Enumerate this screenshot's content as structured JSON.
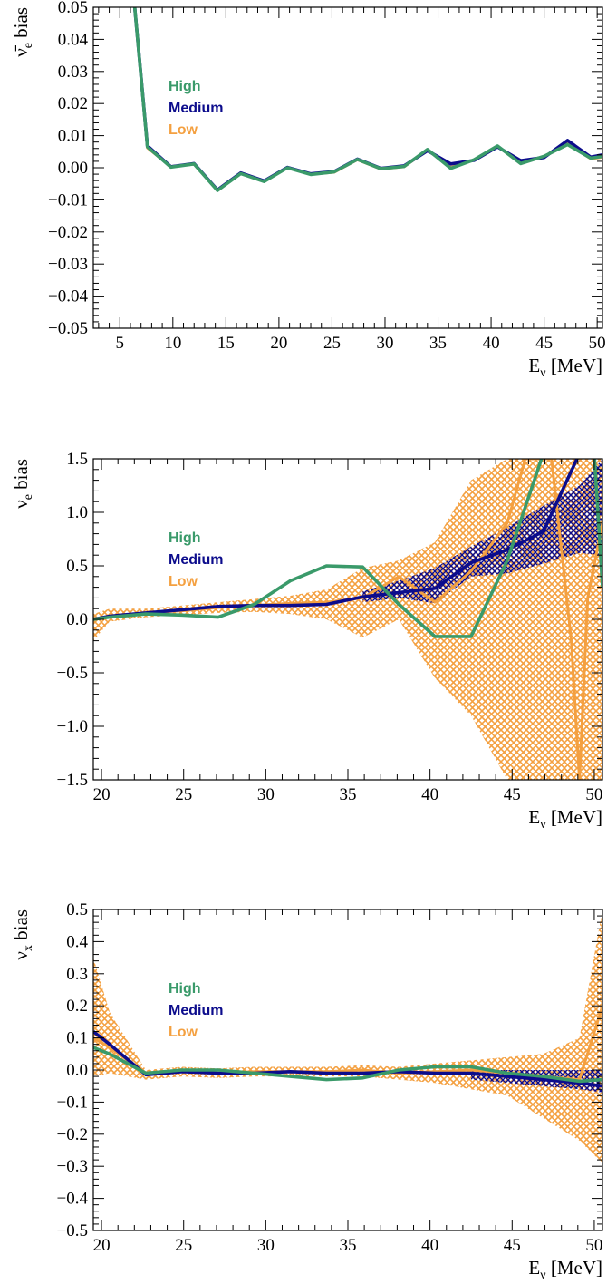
{
  "colors": {
    "High": "#3a9a6a",
    "Medium": "#0c0c8c",
    "Low": "#f4a040"
  },
  "chart_data": [
    {
      "type": "line",
      "xlabel": "E_ν [MeV]",
      "ylabel_main": "ν̄",
      "ylabel_sub": "e",
      "ylabel_rest": " bias",
      "xlim": [
        2.5,
        50.5
      ],
      "ylim": [
        -0.05,
        0.05
      ],
      "xticks": [
        5,
        10,
        15,
        20,
        25,
        30,
        35,
        40,
        45,
        50
      ],
      "xtick_labels": [
        "5",
        "10",
        "15",
        "20",
        "25",
        "30",
        "35",
        "40",
        "45",
        "50"
      ],
      "yticks": [
        -0.05,
        -0.04,
        -0.03,
        -0.02,
        -0.01,
        0,
        0.01,
        0.02,
        0.03,
        0.04,
        0.05
      ],
      "ytick_labels": [
        "−0.05",
        "−0.04",
        "−0.03",
        "−0.02",
        "−0.01",
        "0.00",
        "0.01",
        "0.02",
        "0.03",
        "0.04",
        "0.05"
      ],
      "legend": [
        "High",
        "Medium",
        "Low"
      ],
      "legend_position": "upper-left",
      "series": [
        {
          "name": "High",
          "x": [
            6.4,
            7.6,
            9.8,
            12.0,
            14.2,
            16.4,
            18.6,
            20.8,
            23.0,
            25.2,
            27.4,
            29.6,
            31.8,
            34.0,
            36.2,
            38.4,
            40.6,
            42.8,
            45.0,
            47.2,
            49.4,
            50.5
          ],
          "y": [
            0.05,
            0.0065,
            0.0002,
            0.0012,
            -0.0071,
            -0.0018,
            -0.0043,
            0.0,
            -0.0021,
            -0.0013,
            0.0026,
            -0.0003,
            0.0004,
            0.0057,
            -0.0002,
            0.0025,
            0.0068,
            0.0013,
            0.0036,
            0.0072,
            0.003,
            0.0035
          ]
        },
        {
          "name": "Medium",
          "x": [
            6.4,
            7.6,
            9.8,
            12.0,
            14.2,
            16.4,
            18.6,
            20.8,
            23.0,
            25.2,
            27.4,
            29.6,
            31.8,
            34.0,
            36.2,
            38.4,
            40.6,
            42.8,
            45.0,
            47.2,
            49.4,
            50.5
          ],
          "y": [
            0.05,
            0.0068,
            0.0003,
            0.0013,
            -0.0069,
            -0.0016,
            -0.0041,
            0.0001,
            -0.0019,
            -0.0012,
            0.0027,
            -0.0002,
            0.0006,
            0.0053,
            0.0012,
            0.0023,
            0.0065,
            0.0022,
            0.0032,
            0.0085,
            0.0033,
            0.004
          ]
        },
        {
          "name": "Low",
          "x": [
            6.4,
            7.6,
            9.8,
            12.0,
            14.2,
            16.4,
            18.6,
            20.8,
            23.0,
            25.2,
            27.4,
            29.6,
            31.8,
            34.0,
            36.2,
            38.4,
            40.6,
            42.8,
            45.0,
            47.2,
            49.4,
            50.5
          ],
          "y": [
            0.05,
            0.0062,
            0.0004,
            0.0011,
            -0.007,
            -0.0017,
            -0.0042,
            0.0,
            -0.002,
            -0.0014,
            0.0025,
            -0.0004,
            0.0003,
            0.0055,
            0.0001,
            0.0024,
            0.0067,
            0.0015,
            0.0034,
            0.0075,
            0.0028,
            0.0033
          ]
        }
      ]
    },
    {
      "type": "line",
      "xlabel": "E_ν [MeV]",
      "ylabel_main": "ν",
      "ylabel_sub": "e",
      "ylabel_rest": " bias",
      "xlim": [
        19.5,
        50.5
      ],
      "ylim": [
        -1.5,
        1.5
      ],
      "xticks": [
        20,
        25,
        30,
        35,
        40,
        45,
        50
      ],
      "xtick_labels": [
        "20",
        "25",
        "30",
        "35",
        "40",
        "45",
        "50"
      ],
      "yticks": [
        -1.5,
        -1.0,
        -0.5,
        0.0,
        0.5,
        1.0,
        1.5
      ],
      "ytick_labels": [
        "−1.5",
        "−1.0",
        "−0.5",
        "0.0",
        "0.5",
        "1.0",
        "1.5"
      ],
      "legend": [
        "High",
        "Medium",
        "Low"
      ],
      "legend_position": "upper-left",
      "series": [
        {
          "name": "High",
          "x": [
            19.5,
            20.5,
            22.7,
            24.9,
            27.1,
            29.3,
            31.5,
            33.7,
            35.9,
            38.1,
            40.3,
            42.5,
            44.7,
            46.9,
            49.1,
            50.0,
            50.5
          ],
          "y": [
            0.0,
            0.02,
            0.05,
            0.04,
            0.02,
            0.14,
            0.36,
            0.5,
            0.49,
            0.14,
            -0.16,
            -0.16,
            0.55,
            1.55,
            1.55,
            1.55,
            0.3
          ]
        },
        {
          "name": "Medium",
          "x": [
            19.5,
            20.5,
            22.7,
            24.9,
            27.1,
            29.3,
            31.5,
            33.7,
            35.9,
            38.1,
            40.3,
            42.5,
            44.7,
            46.9,
            49.1,
            50.5
          ],
          "y": [
            0.0,
            0.03,
            0.06,
            0.09,
            0.12,
            0.13,
            0.13,
            0.14,
            0.21,
            0.25,
            0.29,
            0.53,
            0.65,
            0.82,
            1.55,
            1.55
          ]
        },
        {
          "name": "Low",
          "x": [
            19.5,
            20.5,
            22.7,
            24.9,
            27.1,
            29.3,
            31.5,
            33.7,
            35.9,
            38.1,
            40.3,
            42.5,
            44.7,
            45.8,
            47.4,
            48.6,
            49.1,
            49.6,
            50.5
          ],
          "y": [
            0.0,
            0.03,
            0.06,
            0.08,
            0.11,
            0.13,
            0.15,
            0.16,
            0.2,
            0.4,
            0.16,
            0.45,
            0.9,
            1.5,
            1.5,
            -0.2,
            -1.5,
            0.2,
            0.9
          ]
        }
      ],
      "bands": [
        {
          "name": "Low",
          "x": [
            19.5,
            20.5,
            22.7,
            24.9,
            27.1,
            29.3,
            31.5,
            33.7,
            35.9,
            38.1,
            40.3,
            42.5,
            44.7,
            46.9,
            49.1,
            50.5
          ],
          "lo": [
            -0.2,
            -0.02,
            0.02,
            0.04,
            0.06,
            0.07,
            0.05,
            0.0,
            -0.17,
            0.0,
            -0.55,
            -0.9,
            -1.5,
            -1.5,
            -1.5,
            -1.5
          ],
          "hi": [
            0.05,
            0.1,
            0.1,
            0.13,
            0.16,
            0.19,
            0.22,
            0.28,
            0.48,
            0.55,
            0.72,
            1.3,
            1.5,
            1.5,
            1.5,
            1.5
          ]
        },
        {
          "name": "Medium",
          "x": [
            35.9,
            38.1,
            40.3,
            42.5,
            44.7,
            46.9,
            49.1,
            50.5
          ],
          "lo": [
            0.16,
            0.2,
            0.15,
            0.4,
            0.43,
            0.52,
            0.62,
            0.6
          ],
          "hi": [
            0.26,
            0.36,
            0.48,
            0.68,
            0.86,
            1.06,
            1.25,
            1.5
          ]
        }
      ]
    },
    {
      "type": "line",
      "xlabel": "E_ν [MeV]",
      "ylabel_main": "ν",
      "ylabel_sub": "x",
      "ylabel_rest": " bias",
      "xlim": [
        19.5,
        50.5
      ],
      "ylim": [
        -0.5,
        0.5
      ],
      "xticks": [
        20,
        25,
        30,
        35,
        40,
        45,
        50
      ],
      "xtick_labels": [
        "20",
        "25",
        "30",
        "35",
        "40",
        "45",
        "50"
      ],
      "yticks": [
        -0.5,
        -0.4,
        -0.3,
        -0.2,
        -0.1,
        0.0,
        0.1,
        0.2,
        0.3,
        0.4,
        0.5
      ],
      "ytick_labels": [
        "−0.5",
        "−0.4",
        "−0.3",
        "−0.2",
        "−0.1",
        "0.0",
        "0.1",
        "0.2",
        "0.3",
        "0.4",
        "0.5"
      ],
      "legend": [
        "High",
        "Medium",
        "Low"
      ],
      "legend_position": "upper-left",
      "series": [
        {
          "name": "High",
          "x": [
            19.5,
            20.5,
            22.7,
            24.9,
            27.1,
            29.3,
            31.5,
            33.7,
            35.9,
            38.1,
            40.3,
            42.5,
            44.7,
            46.9,
            49.1,
            50.5
          ],
          "y": [
            0.07,
            0.05,
            -0.01,
            0.0,
            0.0,
            -0.01,
            -0.02,
            -0.03,
            -0.025,
            0.0,
            0.01,
            0.01,
            -0.01,
            -0.02,
            -0.035,
            -0.03
          ]
        },
        {
          "name": "Medium",
          "x": [
            19.5,
            20.5,
            22.7,
            24.9,
            27.1,
            29.3,
            31.5,
            33.7,
            35.9,
            38.1,
            40.3,
            42.5,
            44.7,
            46.9,
            49.1,
            50.5
          ],
          "y": [
            0.12,
            0.08,
            -0.015,
            -0.005,
            -0.01,
            -0.01,
            -0.005,
            -0.01,
            -0.01,
            -0.005,
            -0.01,
            -0.01,
            -0.02,
            -0.03,
            -0.04,
            -0.05
          ]
        },
        {
          "name": "Low",
          "x": [
            19.5,
            20.5,
            22.7,
            24.9,
            27.1,
            29.3,
            31.5,
            33.7,
            35.9,
            38.1,
            40.3,
            42.5,
            44.7,
            46.9,
            49.1,
            50.5
          ],
          "y": [
            0.1,
            0.07,
            -0.01,
            -0.005,
            -0.01,
            -0.005,
            -0.005,
            -0.005,
            0.0,
            -0.01,
            -0.005,
            0.0,
            -0.01,
            -0.02,
            -0.03,
            0.2
          ]
        }
      ],
      "bands": [
        {
          "name": "Low",
          "x": [
            19.5,
            20.5,
            22.7,
            24.9,
            27.1,
            29.3,
            31.5,
            33.7,
            35.9,
            38.1,
            40.3,
            42.5,
            44.7,
            46.9,
            49.1,
            50.5
          ],
          "lo": [
            -0.02,
            -0.01,
            -0.03,
            -0.02,
            -0.025,
            -0.02,
            -0.02,
            -0.02,
            -0.02,
            -0.03,
            -0.04,
            -0.06,
            -0.08,
            -0.15,
            -0.22,
            -0.29
          ],
          "hi": [
            0.35,
            0.18,
            0.0,
            0.01,
            0.005,
            0.01,
            0.01,
            0.01,
            0.015,
            0.01,
            0.02,
            0.03,
            0.04,
            0.05,
            0.1,
            0.5
          ]
        },
        {
          "name": "Medium",
          "x": [
            42.5,
            44.7,
            46.9,
            49.1,
            50.5
          ],
          "lo": [
            -0.03,
            -0.04,
            -0.05,
            -0.06,
            -0.07
          ],
          "hi": [
            0.0,
            0.0,
            0.0,
            0.0,
            0.0
          ]
        }
      ]
    }
  ]
}
